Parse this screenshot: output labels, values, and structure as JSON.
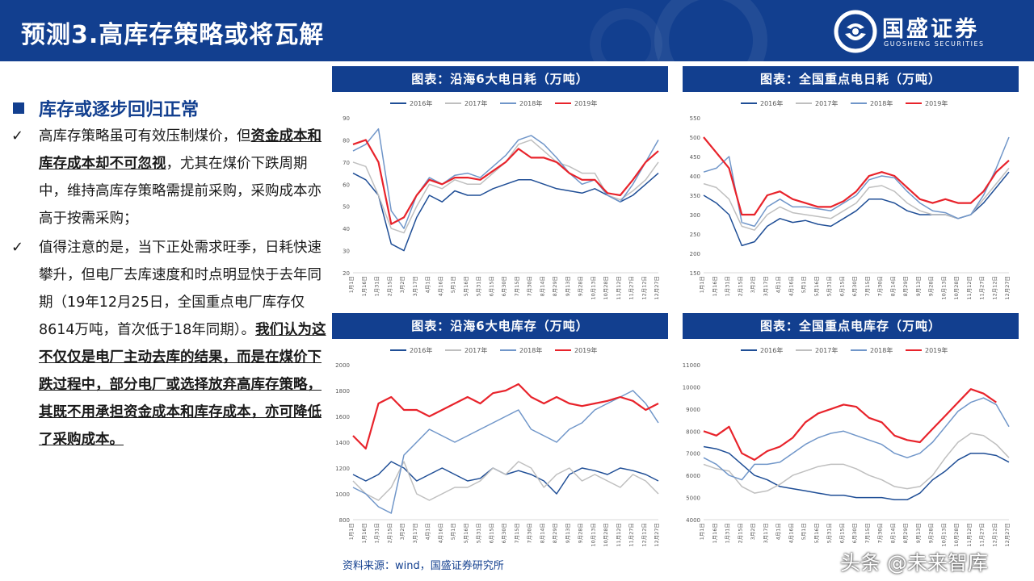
{
  "header": {
    "title": "预测3.高库存策略或将瓦解",
    "logo_text": "国盛证券",
    "logo_en": "GUOSHENG SECURITIES"
  },
  "left": {
    "section_title": "库存或逐步回归正常",
    "bullet1": {
      "p1": "高库存策略虽可有效压制煤价，但",
      "hl": "资金成本和库存成本却不可忽视",
      "p2": "，尤其在煤价下跌周期中，维持高库存策略需提前采购，采购成本亦高于按需采购；"
    },
    "bullet2": {
      "p1": "值得注意的是，当下正处需求旺季，日耗快速攀升，但电厂去库速度和时点明显快于去年同期（19年12月25日，全国重点电厂库存仅8614万吨，首次低于18年同期）。",
      "hl": "我们认为这不仅仅是电厂主动去库的结果，而是在煤价下跌过程中，部分电厂或选择放弃高库存策略，其既不用承担资金成本和库存成本，亦可降低了采购成本。"
    }
  },
  "source": "资料来源：wind，国盛证券研究所",
  "watermark": "头条 @未来智库",
  "colors": {
    "brand": "#123f8f",
    "s2016": "#1f4e96",
    "s2017": "#bfbfbf",
    "s2018": "#7096c9",
    "s2019": "#e8232b"
  },
  "chart_data": [
    {
      "type": "line",
      "title": "图表：沿海6大电日耗（万吨）",
      "ylim": [
        20,
        90
      ],
      "yticks": [
        20,
        30,
        40,
        50,
        60,
        70,
        80,
        90
      ],
      "x": [
        "1月1日",
        "1月16日",
        "1月31日",
        "2月15日",
        "3月2日",
        "3月17日",
        "4月1日",
        "4月16日",
        "5月1日",
        "5月16日",
        "5月31日",
        "6月15日",
        "6月30日",
        "7月15日",
        "7月30日",
        "8月14日",
        "8月29日",
        "9月13日",
        "9月28日",
        "10月13日",
        "10月28日",
        "11月12日",
        "11月27日",
        "12月12日",
        "12月27日"
      ],
      "series": [
        {
          "name": "2016年",
          "values": [
            65,
            62,
            55,
            33,
            30,
            45,
            55,
            52,
            57,
            55,
            55,
            58,
            60,
            62,
            62,
            60,
            58,
            57,
            56,
            58,
            55,
            52,
            55,
            60,
            65
          ]
        },
        {
          "name": "2017年",
          "values": [
            70,
            68,
            55,
            40,
            38,
            50,
            60,
            58,
            62,
            60,
            60,
            65,
            70,
            78,
            80,
            75,
            70,
            68,
            65,
            65,
            55,
            53,
            57,
            62,
            70
          ]
        },
        {
          "name": "2018年",
          "values": [
            75,
            78,
            85,
            48,
            40,
            55,
            63,
            60,
            64,
            65,
            63,
            68,
            73,
            80,
            82,
            78,
            72,
            65,
            60,
            62,
            55,
            52,
            60,
            70,
            80
          ]
        },
        {
          "name": "2019年",
          "values": [
            78,
            80,
            70,
            42,
            45,
            55,
            62,
            60,
            63,
            63,
            62,
            66,
            70,
            76,
            72,
            72,
            70,
            65,
            62,
            62,
            56,
            55,
            62,
            70,
            75
          ]
        }
      ]
    },
    {
      "type": "line",
      "title": "图表：全国重点电日耗（万吨）",
      "ylim": [
        150,
        550
      ],
      "yticks": [
        150,
        200,
        250,
        300,
        350,
        400,
        450,
        500,
        550
      ],
      "x": [
        "1月1日",
        "1月16日",
        "1月31日",
        "2月15日",
        "3月2日",
        "3月17日",
        "4月1日",
        "4月16日",
        "5月1日",
        "5月16日",
        "5月31日",
        "6月15日",
        "6月30日",
        "7月15日",
        "7月30日",
        "8月14日",
        "8月29日",
        "9月13日",
        "9月28日",
        "10月13日",
        "10月28日",
        "11月12日",
        "11月27日",
        "12月12日",
        "12月27日"
      ],
      "series": [
        {
          "name": "2016年",
          "values": [
            350,
            330,
            300,
            220,
            230,
            270,
            290,
            280,
            285,
            275,
            270,
            290,
            310,
            340,
            340,
            330,
            310,
            300,
            300,
            300,
            290,
            300,
            330,
            370,
            410
          ]
        },
        {
          "name": "2017年",
          "values": [
            380,
            370,
            340,
            270,
            260,
            300,
            320,
            305,
            300,
            295,
            290,
            310,
            330,
            370,
            375,
            360,
            330,
            310,
            300,
            300,
            290,
            300,
            340,
            380,
            420
          ]
        },
        {
          "name": "2018年",
          "values": [
            410,
            420,
            450,
            280,
            270,
            320,
            340,
            320,
            320,
            315,
            310,
            330,
            350,
            390,
            400,
            395,
            360,
            330,
            310,
            305,
            290,
            300,
            350,
            420,
            500
          ]
        },
        {
          "name": "2019年",
          "values": [
            500,
            460,
            420,
            300,
            300,
            350,
            360,
            340,
            330,
            320,
            320,
            335,
            360,
            400,
            410,
            400,
            370,
            340,
            330,
            340,
            330,
            330,
            360,
            410,
            440
          ]
        }
      ]
    },
    {
      "type": "line",
      "title": "图表：沿海6大电库存（万吨）",
      "ylim": [
        800,
        2000
      ],
      "yticks": [
        800,
        1000,
        1200,
        1400,
        1600,
        1800,
        2000
      ],
      "x": [
        "1月1日",
        "1月16日",
        "1月31日",
        "2月15日",
        "3月2日",
        "3月17日",
        "4月1日",
        "4月16日",
        "5月1日",
        "5月16日",
        "5月31日",
        "6月15日",
        "6月30日",
        "7月15日",
        "7月30日",
        "8月14日",
        "8月29日",
        "9月13日",
        "9月28日",
        "10月13日",
        "10月28日",
        "11月12日",
        "11月27日",
        "12月12日",
        "12月27日"
      ],
      "series": [
        {
          "name": "2016年",
          "values": [
            1150,
            1100,
            1150,
            1250,
            1200,
            1100,
            1150,
            1200,
            1150,
            1100,
            1120,
            1200,
            1150,
            1180,
            1150,
            1100,
            1000,
            1150,
            1200,
            1180,
            1150,
            1200,
            1180,
            1150,
            1100
          ]
        },
        {
          "name": "2017年",
          "values": [
            1100,
            1000,
            950,
            1050,
            1250,
            1000,
            950,
            1000,
            1050,
            1050,
            1100,
            1200,
            1150,
            1250,
            1200,
            1050,
            1150,
            1200,
            1100,
            1150,
            1100,
            1050,
            1150,
            1100,
            1000
          ]
        },
        {
          "name": "2018年",
          "values": [
            1050,
            1000,
            900,
            850,
            1300,
            1400,
            1500,
            1450,
            1400,
            1450,
            1500,
            1550,
            1600,
            1650,
            1500,
            1450,
            1400,
            1500,
            1550,
            1650,
            1700,
            1750,
            1800,
            1700,
            1550
          ]
        },
        {
          "name": "2019年",
          "values": [
            1450,
            1350,
            1700,
            1750,
            1650,
            1650,
            1600,
            1650,
            1700,
            1750,
            1700,
            1780,
            1800,
            1850,
            1750,
            1700,
            1750,
            1700,
            1680,
            1700,
            1720,
            1750,
            1720,
            1650,
            1700
          ]
        }
      ]
    },
    {
      "type": "line",
      "title": "图表：全国重点电库存（万吨）",
      "ylim": [
        4000,
        11000
      ],
      "yticks": [
        4000,
        5000,
        6000,
        7000,
        8000,
        9000,
        10000,
        11000
      ],
      "x": [
        "1月1日",
        "1月16日",
        "1月31日",
        "2月15日",
        "3月2日",
        "3月17日",
        "4月1日",
        "4月16日",
        "5月1日",
        "5月16日",
        "5月31日",
        "6月15日",
        "6月30日",
        "7月15日",
        "7月30日",
        "8月14日",
        "8月29日",
        "9月13日",
        "9月28日",
        "10月13日",
        "10月28日",
        "11月12日",
        "11月27日",
        "12月12日",
        "12月27日"
      ],
      "series": [
        {
          "name": "2016年",
          "values": [
            7300,
            7200,
            7000,
            6500,
            6000,
            5800,
            5500,
            5400,
            5300,
            5200,
            5100,
            5100,
            5000,
            5000,
            5000,
            4900,
            4900,
            5200,
            5800,
            6200,
            6700,
            7000,
            7000,
            6900,
            6600
          ]
        },
        {
          "name": "2017年",
          "values": [
            6500,
            6300,
            6200,
            5500,
            5200,
            5300,
            5600,
            6000,
            6200,
            6400,
            6500,
            6500,
            6300,
            6000,
            5800,
            5500,
            5400,
            5500,
            6000,
            6800,
            7500,
            7900,
            7800,
            7400,
            6800
          ]
        },
        {
          "name": "2018年",
          "values": [
            6800,
            6500,
            6000,
            5800,
            6500,
            6500,
            6600,
            7000,
            7400,
            7700,
            7900,
            8000,
            7800,
            7600,
            7400,
            7000,
            6800,
            7000,
            7500,
            8200,
            8900,
            9300,
            9500,
            9200,
            8200
          ]
        },
        {
          "name": "2019年",
          "values": [
            8000,
            7800,
            8200,
            7000,
            6700,
            7100,
            7300,
            7700,
            8400,
            8800,
            9000,
            9200,
            9100,
            8600,
            8400,
            7800,
            7600,
            7500,
            8100,
            8700,
            9300,
            9900,
            9700,
            9300,
            null
          ]
        }
      ]
    }
  ]
}
